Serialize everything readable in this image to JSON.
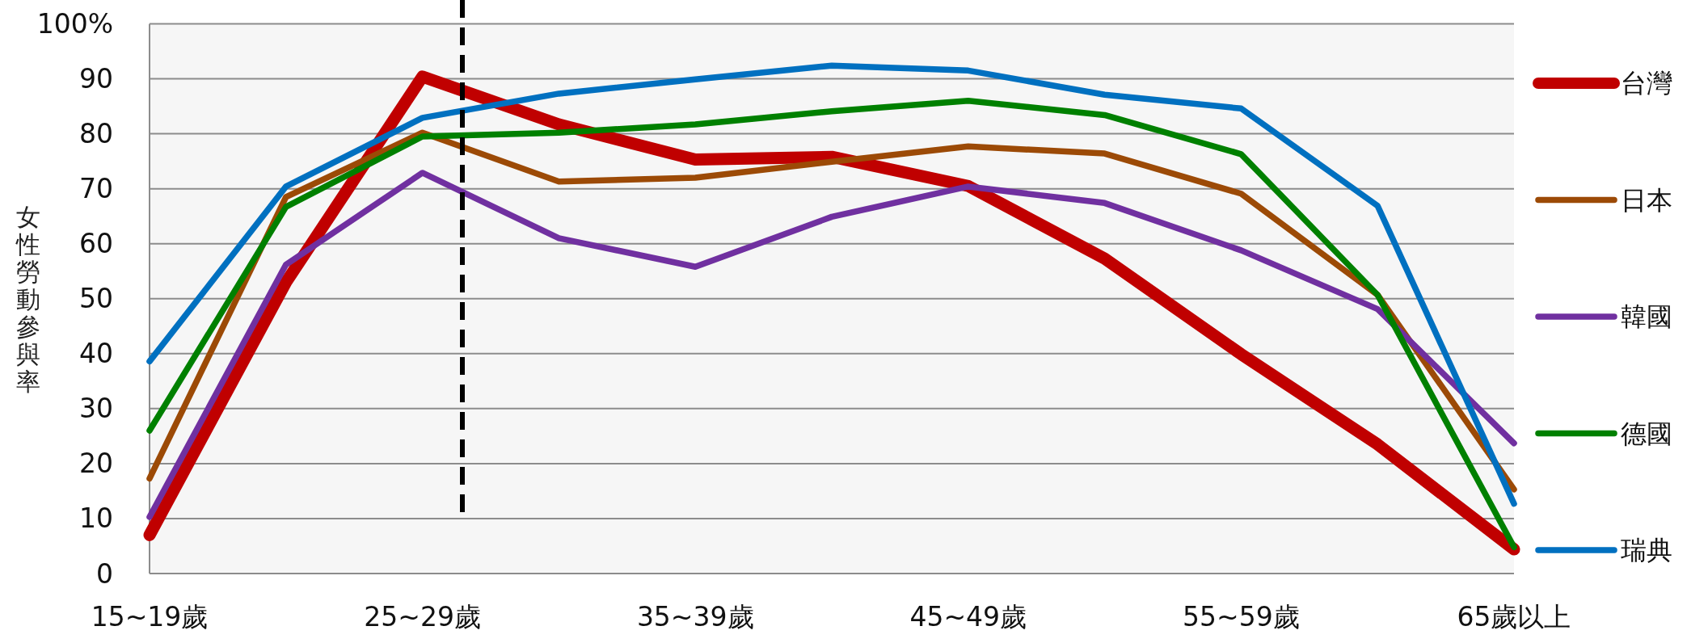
{
  "chart_data": {
    "type": "line",
    "ylabel": "女性勞動參與率",
    "categories": [
      "15~19歲",
      null,
      "25~29歲",
      null,
      "35~39歲",
      null,
      "45~49歲",
      null,
      "55~59歲",
      null,
      "65歲以上"
    ],
    "series": [
      {
        "name": "台灣",
        "color": "#c00000",
        "values": [
          7,
          53,
          90.4,
          81.7,
          75.3,
          75.8,
          70.5,
          57.3,
          39.9,
          23.5,
          4.4
        ]
      },
      {
        "name": "日本",
        "color": "#9c4a06",
        "values": [
          17.3,
          68.5,
          80.2,
          71.3,
          72,
          74.9,
          77.7,
          76.4,
          69.1,
          50.7,
          15.3
        ]
      },
      {
        "name": "韓國",
        "color": "#7030a0",
        "values": [
          10.3,
          56.2,
          72.9,
          61,
          55.8,
          64.9,
          70.4,
          67.4,
          58.8,
          48.1,
          23.7
        ]
      },
      {
        "name": "德國",
        "color": "#008000",
        "values": [
          26,
          66.7,
          79.5,
          80.2,
          81.7,
          84.1,
          86,
          83.4,
          76.3,
          50.7,
          4.8
        ]
      },
      {
        "name": "瑞典",
        "color": "#0070c0",
        "values": [
          38.6,
          70.4,
          82.9,
          87.3,
          89.9,
          92.4,
          91.5,
          87.1,
          84.6,
          66.9,
          12.7
        ]
      }
    ],
    "ylim": [
      0,
      100
    ],
    "yticks": [
      0,
      10,
      20,
      30,
      40,
      50,
      60,
      70,
      80,
      90,
      {
        "value": 100,
        "label": "100%"
      }
    ],
    "grid": "y",
    "legend": "right",
    "marker": "none",
    "line_style": "solid"
  }
}
